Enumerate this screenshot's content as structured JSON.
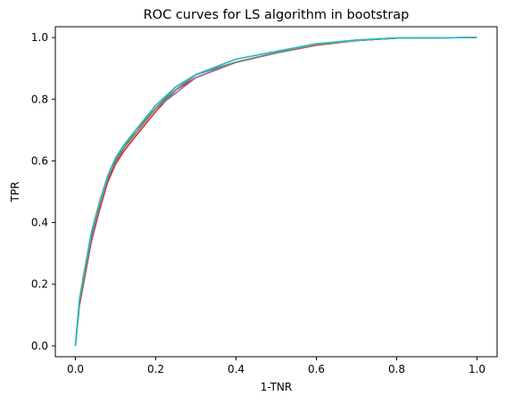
{
  "chart_data": {
    "type": "line",
    "title": "ROC curves for LS algorithm in bootstrap",
    "xlabel": "1-TNR",
    "ylabel": "TPR",
    "xlim": [
      -0.05,
      1.05
    ],
    "ylim": [
      -0.035,
      1.035
    ],
    "xticks": [
      "0.0",
      "0.2",
      "0.4",
      "0.6",
      "0.8",
      "1.0"
    ],
    "yticks": [
      "0.0",
      "0.2",
      "0.4",
      "0.6",
      "0.8",
      "1.0"
    ],
    "grid": false,
    "legend": "none",
    "x": [
      0.0,
      0.01,
      0.02,
      0.04,
      0.06,
      0.08,
      0.1,
      0.12,
      0.15,
      0.2,
      0.25,
      0.3,
      0.4,
      0.5,
      0.6,
      0.7,
      0.8,
      1.0
    ],
    "series": [
      {
        "color": "#1f77b4",
        "values": [
          0.0,
          0.14,
          0.22,
          0.36,
          0.46,
          0.54,
          0.6,
          0.64,
          0.69,
          0.77,
          0.83,
          0.88,
          0.92,
          0.95,
          0.978,
          0.99,
          0.998,
          1.0
        ]
      },
      {
        "color": "#ff7f0e",
        "values": [
          0.0,
          0.14,
          0.21,
          0.35,
          0.45,
          0.53,
          0.59,
          0.64,
          0.69,
          0.77,
          0.83,
          0.87,
          0.92,
          0.95,
          0.976,
          0.99,
          0.998,
          1.0
        ]
      },
      {
        "color": "#2ca02c",
        "values": [
          0.0,
          0.15,
          0.22,
          0.36,
          0.46,
          0.54,
          0.61,
          0.64,
          0.7,
          0.77,
          0.84,
          0.88,
          0.92,
          0.95,
          0.978,
          0.992,
          0.999,
          1.0
        ]
      },
      {
        "color": "#d62728",
        "values": [
          0.0,
          0.13,
          0.2,
          0.34,
          0.44,
          0.53,
          0.59,
          0.63,
          0.68,
          0.76,
          0.83,
          0.87,
          0.92,
          0.95,
          0.975,
          0.99,
          0.998,
          1.0
        ]
      },
      {
        "color": "#9467bd",
        "values": [
          0.0,
          0.14,
          0.21,
          0.35,
          0.45,
          0.54,
          0.6,
          0.64,
          0.69,
          0.77,
          0.82,
          0.87,
          0.92,
          0.95,
          0.977,
          0.99,
          0.998,
          1.0
        ]
      },
      {
        "color": "#8c564b",
        "values": [
          0.0,
          0.14,
          0.22,
          0.36,
          0.46,
          0.55,
          0.6,
          0.64,
          0.69,
          0.77,
          0.83,
          0.88,
          0.92,
          0.95,
          0.978,
          0.991,
          0.998,
          1.0
        ]
      },
      {
        "color": "#e377c2",
        "values": [
          0.0,
          0.15,
          0.23,
          0.37,
          0.47,
          0.55,
          0.61,
          0.65,
          0.7,
          0.78,
          0.84,
          0.88,
          0.93,
          0.955,
          0.98,
          0.992,
          0.999,
          1.0
        ]
      },
      {
        "color": "#7f7f7f",
        "values": [
          0.0,
          0.14,
          0.22,
          0.36,
          0.46,
          0.54,
          0.6,
          0.64,
          0.69,
          0.77,
          0.83,
          0.88,
          0.92,
          0.95,
          0.978,
          0.99,
          0.998,
          1.0
        ]
      },
      {
        "color": "#bcbd22",
        "values": [
          0.0,
          0.15,
          0.23,
          0.37,
          0.47,
          0.55,
          0.61,
          0.65,
          0.7,
          0.78,
          0.84,
          0.88,
          0.93,
          0.955,
          0.979,
          0.991,
          0.999,
          1.0
        ]
      },
      {
        "color": "#17becf",
        "values": [
          0.0,
          0.15,
          0.22,
          0.37,
          0.46,
          0.55,
          0.61,
          0.65,
          0.7,
          0.78,
          0.84,
          0.88,
          0.93,
          0.955,
          0.98,
          0.992,
          0.999,
          1.0
        ]
      }
    ]
  }
}
